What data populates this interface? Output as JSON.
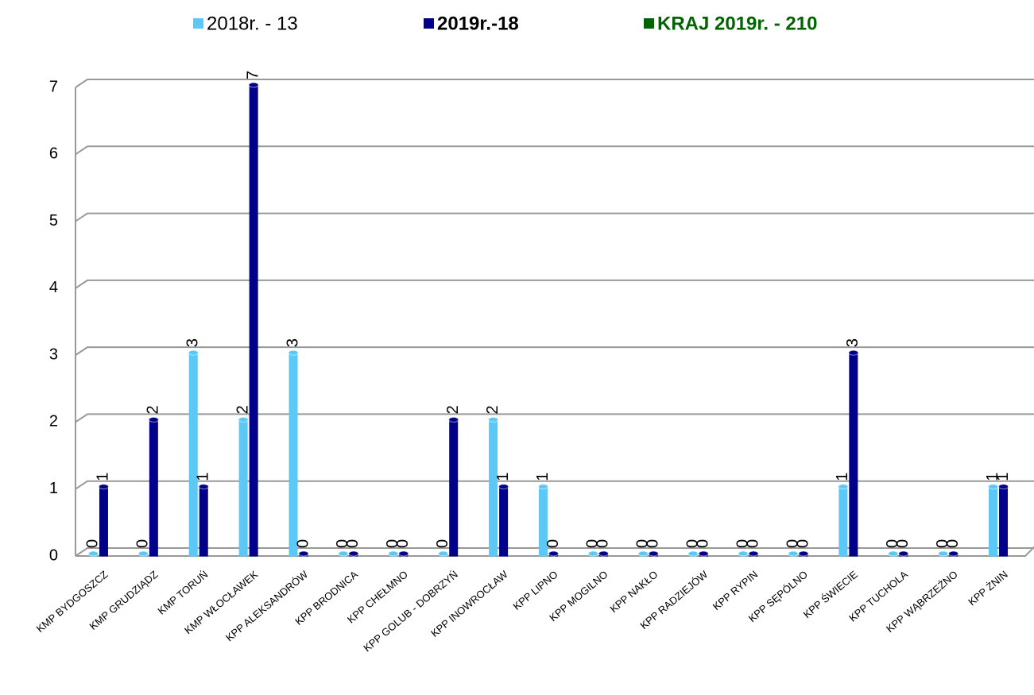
{
  "chart_data": {
    "type": "bar3d",
    "categories": [
      "KMP BYDGOSZCZ",
      "KMP GRUDZIĄDZ",
      "KMP TORUŃ",
      "KMP WŁOCŁAWEK",
      "KPP ALEKSANDRÓW",
      "KPP BRODNICA",
      "KPP CHEŁMNO",
      "KPP GOLUB - DOBRZYŃ",
      "KPP INOWROCŁAW",
      "KPP LIPNO",
      "KPP MOGILNO",
      "KPP NAKŁO",
      "KPP RADZIEJÓW",
      "KPP RYPIN",
      "KPP SĘPÓLNO",
      "KPP ŚWIECIE",
      "KPP TUCHOLA",
      "KPP WĄBRZEŹNO",
      "KPP ŻNIN"
    ],
    "series": [
      {
        "name": "2018r. - 13",
        "color": "#5bc8f5",
        "values": [
          0,
          0,
          3,
          2,
          3,
          0,
          0,
          0,
          2,
          1,
          0,
          0,
          0,
          0,
          0,
          1,
          0,
          0,
          1
        ]
      },
      {
        "name": "2019r.-18",
        "color": "#00008b",
        "values": [
          1,
          2,
          1,
          7,
          0,
          0,
          0,
          2,
          1,
          0,
          0,
          0,
          0,
          0,
          0,
          3,
          0,
          0,
          1
        ]
      },
      {
        "name": "KRAJ  2019r. - 210",
        "color": "#006400"
      }
    ],
    "ylim": [
      0,
      7
    ],
    "yticks": [
      0,
      1,
      2,
      3,
      4,
      5,
      6,
      7
    ],
    "grid": true,
    "legend": "top"
  }
}
